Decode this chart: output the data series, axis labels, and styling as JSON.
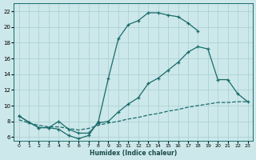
{
  "background_color": "#cce8ea",
  "grid_color": "#a8cdd0",
  "line_color": "#1a6b6b",
  "xlabel": "Humidex (Indice chaleur)",
  "xlim": [
    -0.5,
    23.5
  ],
  "ylim": [
    5.5,
    23
  ],
  "xticks": [
    0,
    1,
    2,
    3,
    4,
    5,
    6,
    7,
    8,
    9,
    10,
    11,
    12,
    13,
    14,
    15,
    16,
    17,
    18,
    19,
    20,
    21,
    22,
    23
  ],
  "yticks": [
    6,
    8,
    10,
    12,
    14,
    16,
    18,
    20,
    22
  ],
  "series": [
    {
      "x": [
        0,
        1,
        2,
        3,
        4,
        5,
        6,
        7,
        8,
        9,
        10,
        11,
        12,
        13,
        14,
        15,
        16,
        17,
        18
      ],
      "y": [
        8.7,
        7.9,
        7.2,
        7.2,
        7.0,
        6.2,
        5.8,
        6.2,
        8.0,
        13.5,
        18.5,
        20.3,
        20.8,
        21.8,
        21.8,
        21.5,
        21.3,
        20.5,
        19.5
      ],
      "linestyle": "-",
      "marker": true
    },
    {
      "x": [
        0,
        1,
        2,
        3,
        4,
        5,
        6,
        7,
        8,
        9,
        10,
        11,
        12,
        13,
        14,
        15,
        16,
        17,
        18,
        19,
        20,
        21,
        22,
        23
      ],
      "y": [
        8.7,
        7.9,
        7.2,
        7.2,
        8.0,
        7.0,
        6.5,
        6.5,
        7.8,
        8.0,
        9.2,
        10.2,
        11.0,
        12.8,
        13.5,
        14.5,
        15.5,
        16.8,
        17.5,
        17.2,
        13.3,
        13.3,
        11.5,
        10.5
      ],
      "linestyle": "-",
      "marker": true
    },
    {
      "x": [
        0,
        1,
        2,
        3,
        4,
        5,
        6,
        7,
        8,
        9,
        10,
        11,
        12,
        13,
        14,
        15,
        16,
        17,
        18,
        19,
        20,
        21,
        22,
        23
      ],
      "y": [
        8.2,
        7.8,
        7.5,
        7.3,
        7.3,
        7.1,
        6.9,
        7.1,
        7.5,
        7.8,
        8.0,
        8.3,
        8.5,
        8.8,
        9.0,
        9.3,
        9.5,
        9.8,
        10.0,
        10.2,
        10.4,
        10.4,
        10.5,
        10.5
      ],
      "linestyle": "--",
      "marker": false
    }
  ]
}
